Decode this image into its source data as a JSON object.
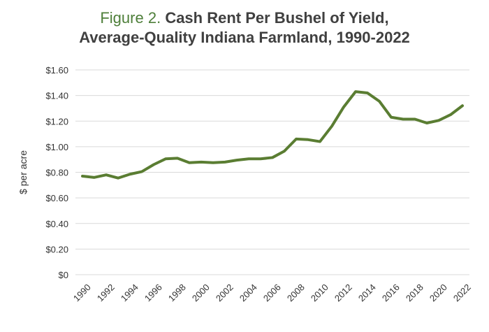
{
  "title": {
    "figure_label": "Figure 2.",
    "line1": "Cash Rent Per Bushel of Yield,",
    "line2": "Average-Quality Indiana Farmland, 1990-2022"
  },
  "colors": {
    "figure_label": "#4e7f3a",
    "series_line": "#5a7d32",
    "gridline": "#d9d9d9",
    "text": "#333333"
  },
  "chart_data": {
    "type": "line",
    "title": "Cash Rent Per Bushel of Yield, Average-Quality Indiana Farmland, 1990-2022",
    "xlabel": "",
    "ylabel": "$ per acre",
    "ylim": [
      0,
      1.6
    ],
    "xlim": [
      1990,
      2022
    ],
    "grid": "horizontal",
    "legend": "none",
    "y_ticks": [
      0,
      0.2,
      0.4,
      0.6,
      0.8,
      1.0,
      1.2,
      1.4,
      1.6
    ],
    "y_tick_labels": [
      "$0",
      "$0.20",
      "$0.40",
      "$0.60",
      "$0.80",
      "$1.00",
      "$1.20",
      "$1.40",
      "$1.60"
    ],
    "x_tick_labels": [
      "1990",
      "1992",
      "1994",
      "1996",
      "1998",
      "2000",
      "2002",
      "2004",
      "2006",
      "2008",
      "2010",
      "2012",
      "2014",
      "2016",
      "2018",
      "2020",
      "2022"
    ],
    "x": [
      1990,
      1991,
      1992,
      1993,
      1994,
      1995,
      1996,
      1997,
      1998,
      1999,
      2000,
      2001,
      2002,
      2003,
      2004,
      2005,
      2006,
      2007,
      2008,
      2009,
      2010,
      2011,
      2012,
      2013,
      2014,
      2015,
      2016,
      2017,
      2018,
      2019,
      2020,
      2021,
      2022
    ],
    "series": [
      {
        "values": [
          0.77,
          0.76,
          0.78,
          0.755,
          0.785,
          0.805,
          0.86,
          0.905,
          0.91,
          0.875,
          0.88,
          0.875,
          0.88,
          0.895,
          0.905,
          0.905,
          0.915,
          0.965,
          1.06,
          1.055,
          1.04,
          1.16,
          1.31,
          1.43,
          1.42,
          1.355,
          1.23,
          1.215,
          1.215,
          1.185,
          1.205,
          1.25,
          1.32
        ]
      }
    ]
  }
}
